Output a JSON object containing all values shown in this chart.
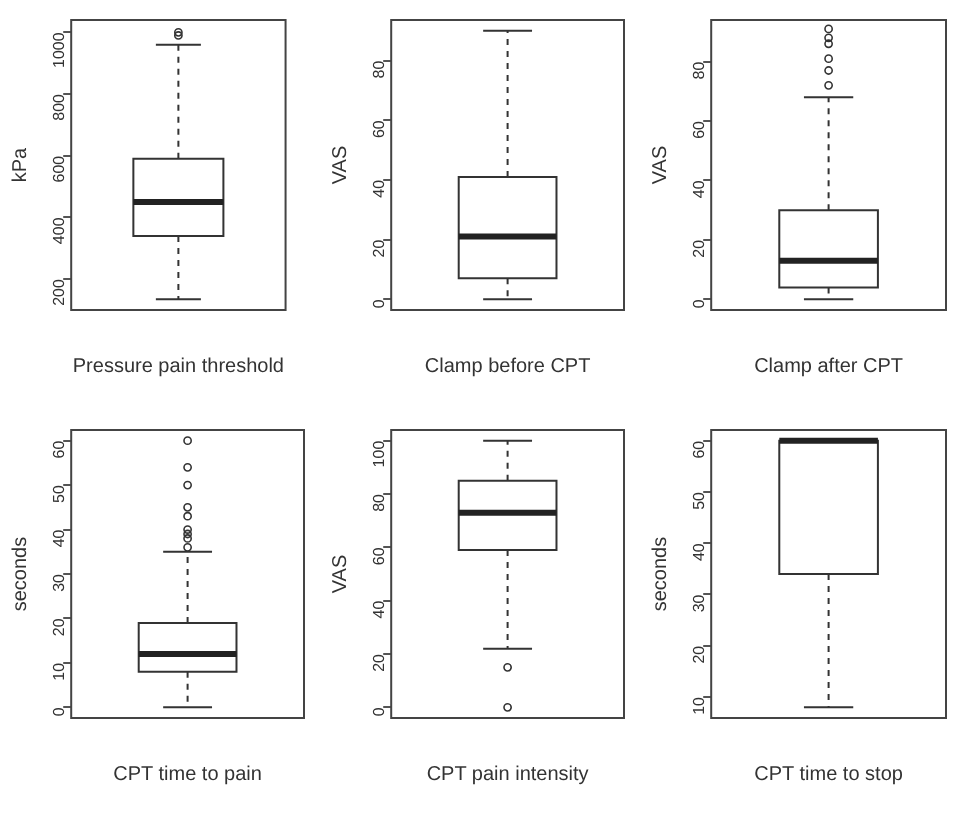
{
  "chart_data": [
    {
      "type": "box",
      "categories": [
        "Pressure pain threshold"
      ],
      "ylabel": "kPa",
      "ylim": [
        100,
        1040
      ],
      "yticks": [
        200,
        400,
        600,
        800,
        1000
      ],
      "boxes": [
        {
          "low": 135,
          "q1": 340,
          "median": 450,
          "q3": 590,
          "high": 960,
          "outliers": [
            990,
            1000
          ]
        }
      ]
    },
    {
      "type": "box",
      "categories": [
        "Clamp before CPT"
      ],
      "ylabel": "VAS",
      "ylim": [
        -3.6,
        93.6
      ],
      "yticks": [
        0,
        20,
        40,
        60,
        80
      ],
      "boxes": [
        {
          "low": 0,
          "q1": 7,
          "median": 21,
          "q3": 41,
          "high": 90
        }
      ]
    },
    {
      "type": "box",
      "categories": [
        "Clamp after CPT"
      ],
      "ylabel": "VAS",
      "ylim": [
        -3.6,
        94
      ],
      "yticks": [
        0,
        20,
        40,
        60,
        80
      ],
      "boxes": [
        {
          "low": 0,
          "q1": 4,
          "median": 13,
          "q3": 30,
          "high": 68,
          "outliers": [
            72,
            77,
            81,
            86,
            88,
            91
          ]
        }
      ]
    },
    {
      "type": "box",
      "categories": [
        "CPT time to pain"
      ],
      "ylabel": "seconds",
      "ylim": [
        -2.4,
        62.4
      ],
      "yticks": [
        0,
        10,
        20,
        30,
        40,
        50,
        60
      ],
      "boxes": [
        {
          "low": 0,
          "q1": 8,
          "median": 12,
          "q3": 19,
          "high": 35,
          "outliers": [
            36,
            38,
            39,
            40,
            43,
            45,
            50,
            54,
            60
          ]
        }
      ]
    },
    {
      "type": "box",
      "categories": [
        "CPT pain intensity"
      ],
      "ylabel": "VAS",
      "ylim": [
        -4,
        104
      ],
      "yticks": [
        0,
        20,
        40,
        60,
        80,
        100
      ],
      "boxes": [
        {
          "low": 22,
          "q1": 59,
          "median": 73,
          "q3": 85,
          "high": 100,
          "outliers": [
            0,
            15
          ]
        }
      ]
    },
    {
      "type": "box",
      "categories": [
        "CPT time to stop"
      ],
      "ylabel": "seconds",
      "ylim": [
        5.9,
        62.1
      ],
      "yticks": [
        10,
        20,
        30,
        40,
        50,
        60
      ],
      "boxes": [
        {
          "low": 8,
          "q1": 34,
          "median": 60,
          "q3": 60,
          "high": 60
        }
      ]
    }
  ]
}
